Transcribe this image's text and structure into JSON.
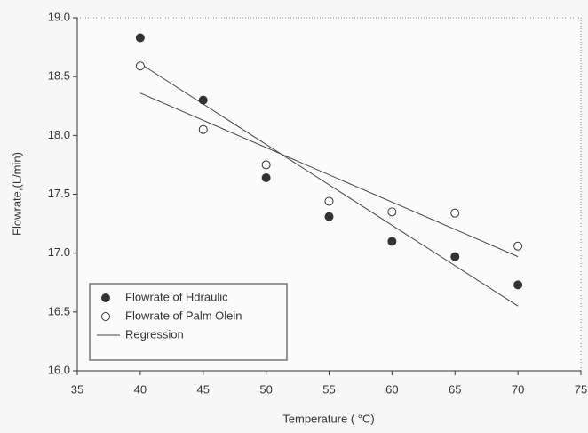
{
  "chart_data": {
    "type": "scatter",
    "xlabel": "Temperature ( °C)",
    "ylabel": "Flowrate,(L/min)",
    "x": [
      40,
      45,
      50,
      55,
      60,
      65,
      70
    ],
    "series": [
      {
        "name": "Flowrate of Hdraulic",
        "color": "#333333",
        "filled": true,
        "values": [
          18.83,
          18.3,
          17.64,
          17.31,
          17.1,
          16.97,
          16.73
        ]
      },
      {
        "name": "Flowrate of Palm Olein",
        "color": "#333333",
        "filled": false,
        "values": [
          18.59,
          18.05,
          17.75,
          17.44,
          17.35,
          17.34,
          17.06
        ]
      }
    ],
    "regression": {
      "name": "Regression",
      "color": "#444444",
      "lines": [
        {
          "x": [
            40,
            70
          ],
          "values": [
            18.61,
            16.55
          ]
        },
        {
          "x": [
            40,
            70
          ],
          "values": [
            18.36,
            16.97
          ]
        }
      ]
    },
    "xlim": [
      35,
      75
    ],
    "xticks": [
      35,
      40,
      45,
      50,
      55,
      60,
      65,
      70,
      75
    ],
    "ylim": [
      16,
      19
    ],
    "yticks": [
      {
        "value": 16,
        "label": "16.0"
      },
      16.5,
      {
        "value": 17,
        "label": "17.0"
      },
      17.5,
      {
        "value": 18,
        "label": "18.0"
      },
      18.5,
      {
        "value": 19,
        "label": "19.0"
      }
    ],
    "legend": "lower left"
  }
}
